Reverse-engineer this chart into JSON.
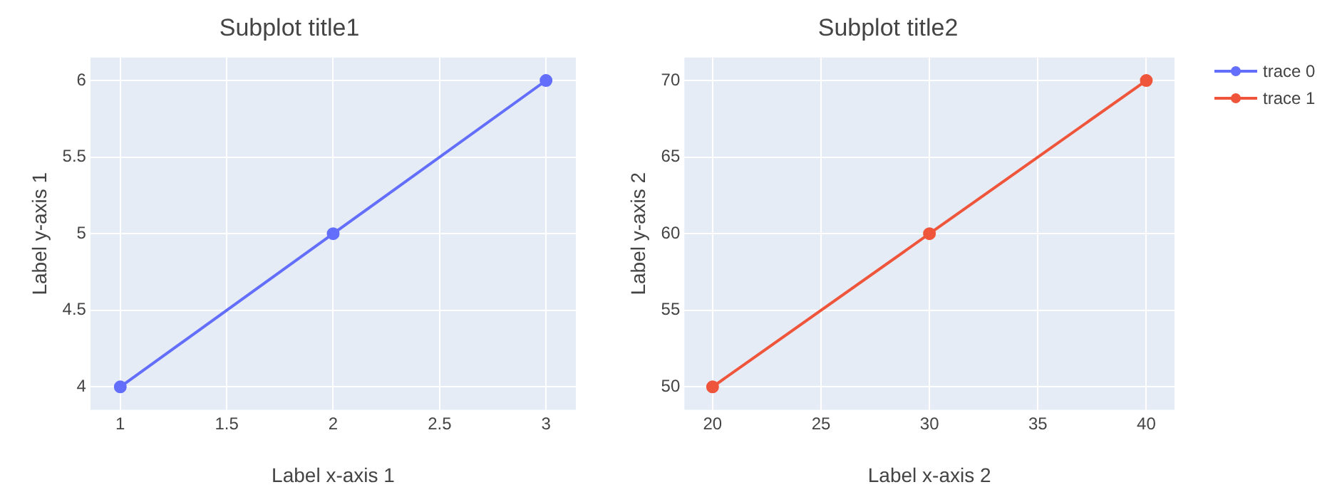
{
  "chart_data": [
    {
      "type": "line",
      "title": "Subplot title1",
      "xlabel": "Label x-axis 1",
      "ylabel": "Label y-axis 1",
      "x": [
        1,
        2,
        3
      ],
      "series": [
        {
          "name": "trace 0",
          "color": "#636efa",
          "values": [
            4,
            5,
            6
          ]
        }
      ],
      "xlim": [
        0.86,
        3.14
      ],
      "ylim": [
        3.85,
        6.15
      ],
      "xticks": [
        1,
        1.5,
        2,
        2.5,
        3
      ],
      "yticks": [
        4,
        4.5,
        5,
        5.5,
        6
      ],
      "grid": true,
      "marker": "circle",
      "line_style": "solid",
      "legend": "right"
    },
    {
      "type": "line",
      "title": "Subplot title2",
      "xlabel": "Label x-axis 2",
      "ylabel": "Label y-axis 2",
      "x": [
        20,
        30,
        40
      ],
      "series": [
        {
          "name": "trace 1",
          "color": "#ef553b",
          "values": [
            50,
            60,
            70
          ]
        }
      ],
      "xlim": [
        18.7,
        41.3
      ],
      "ylim": [
        48.5,
        71.5
      ],
      "xticks": [
        20,
        25,
        30,
        35,
        40
      ],
      "yticks": [
        50,
        55,
        60,
        65,
        70
      ],
      "grid": true,
      "marker": "circle",
      "line_style": "solid",
      "legend": "right"
    }
  ]
}
